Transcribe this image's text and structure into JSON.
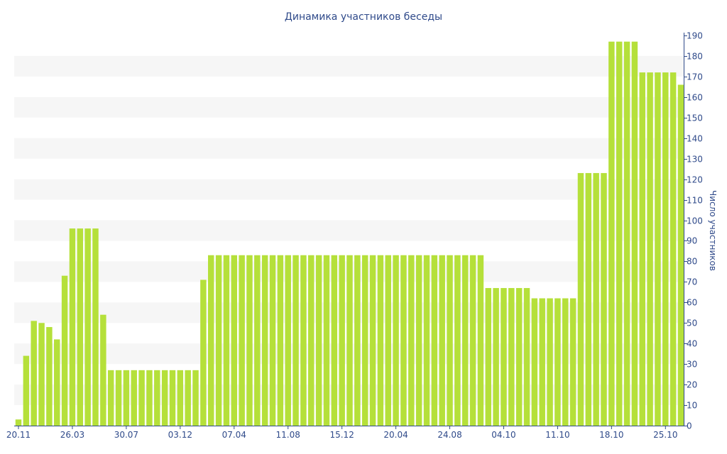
{
  "chart_data": {
    "type": "bar",
    "title": "Динамика участников беседы",
    "ylabel": "Число участников",
    "xlabel": "",
    "ylim": [
      0,
      190
    ],
    "y_ticks": [
      0,
      10,
      20,
      30,
      40,
      50,
      60,
      70,
      80,
      90,
      100,
      110,
      120,
      130,
      140,
      150,
      160,
      170,
      180,
      190
    ],
    "y_axis_side": "right",
    "grid": "alternating horizontal bands",
    "legend": "none",
    "bar_color": "#b5e03a",
    "axis_color": "#2f4a8a",
    "band_color": "#f6f6f6",
    "x_tick_labels": [
      {
        "label": "20.11",
        "index": 0
      },
      {
        "label": "26.03",
        "index": 7
      },
      {
        "label": "30.07",
        "index": 14
      },
      {
        "label": "03.12",
        "index": 21
      },
      {
        "label": "07.04",
        "index": 28
      },
      {
        "label": "11.08",
        "index": 35
      },
      {
        "label": "15.12",
        "index": 42
      },
      {
        "label": "20.04",
        "index": 49
      },
      {
        "label": "24.08",
        "index": 56
      },
      {
        "label": "04.10",
        "index": 63
      },
      {
        "label": "11.10",
        "index": 70
      },
      {
        "label": "18.10",
        "index": 77
      },
      {
        "label": "25.10",
        "index": 84
      }
    ],
    "values": [
      3,
      34,
      51,
      50,
      48,
      42,
      73,
      96,
      96,
      96,
      96,
      54,
      27,
      27,
      27,
      27,
      27,
      27,
      27,
      27,
      27,
      27,
      27,
      27,
      71,
      83,
      83,
      83,
      83,
      83,
      83,
      83,
      83,
      83,
      83,
      83,
      83,
      83,
      83,
      83,
      83,
      83,
      83,
      83,
      83,
      83,
      83,
      83,
      83,
      83,
      83,
      83,
      83,
      83,
      83,
      83,
      83,
      83,
      83,
      83,
      83,
      67,
      67,
      67,
      67,
      67,
      67,
      62,
      62,
      62,
      62,
      62,
      62,
      123,
      123,
      123,
      123,
      187,
      187,
      187,
      187,
      172,
      172,
      172,
      172,
      172,
      166
    ]
  }
}
